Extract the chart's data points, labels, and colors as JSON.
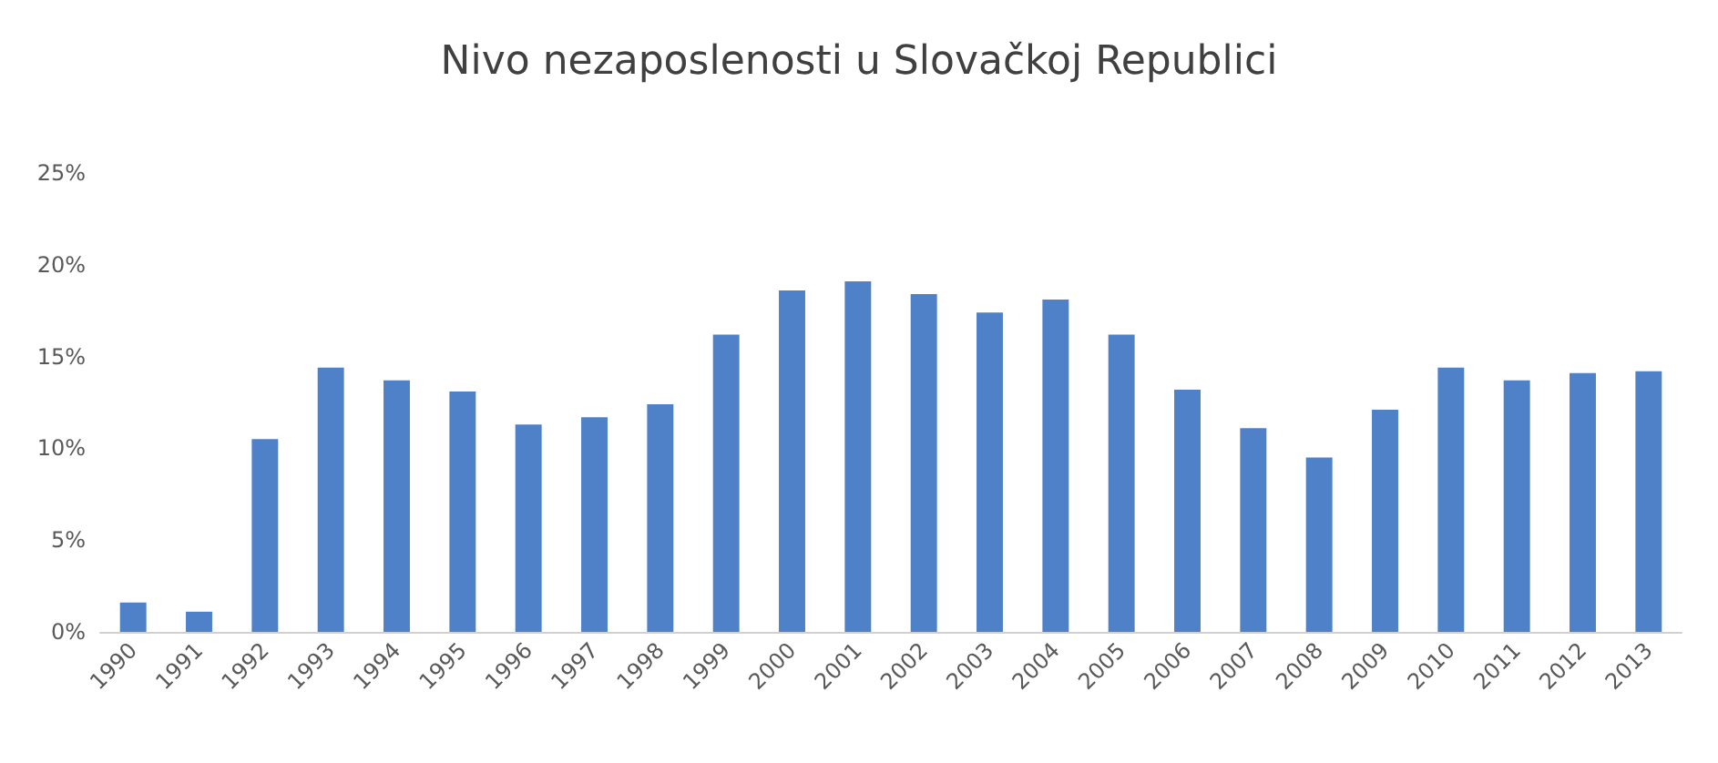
{
  "chart_data": {
    "type": "bar",
    "title": "Nivo nezaposlenosti u Slovačkoj Republici",
    "categories": [
      "1990",
      "1991",
      "1992",
      "1993",
      "1994",
      "1995",
      "1996",
      "1997",
      "1998",
      "1999",
      "2000",
      "2001",
      "2002",
      "2003",
      "2004",
      "2005",
      "2006",
      "2007",
      "2008",
      "2009",
      "2010",
      "2011",
      "2012",
      "2013"
    ],
    "values": [
      1.6,
      1.1,
      10.5,
      14.4,
      13.7,
      13.1,
      11.3,
      11.7,
      12.4,
      16.2,
      18.6,
      19.1,
      18.4,
      17.4,
      18.1,
      16.2,
      13.2,
      11.1,
      9.5,
      12.1,
      14.4,
      13.7,
      14.1,
      14.2
    ],
    "color": "#4f81c9",
    "ylim": [
      0,
      25
    ],
    "yticks": [
      {
        "value": 0,
        "label": "0%"
      },
      {
        "value": 5,
        "label": "5%"
      },
      {
        "value": 10,
        "label": "10%"
      },
      {
        "value": 15,
        "label": "15%"
      },
      {
        "value": 20,
        "label": "20%"
      },
      {
        "value": 25,
        "label": "25%"
      }
    ],
    "grid": false
  }
}
